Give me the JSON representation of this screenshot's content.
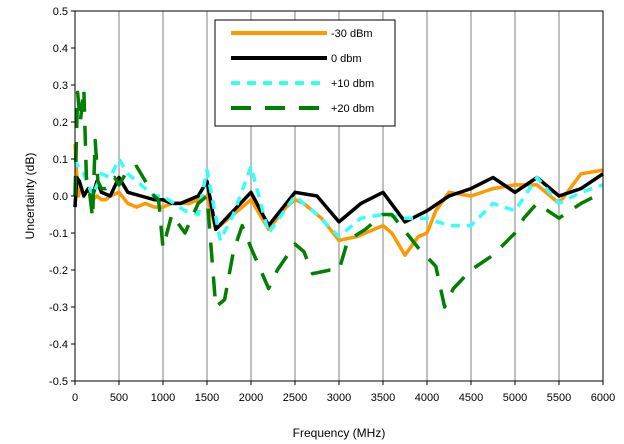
{
  "chart_data": {
    "type": "line",
    "xlabel": "Frequency (MHz)",
    "ylabel": "Uncertainty (dB)",
    "xlim": [
      0,
      6000
    ],
    "ylim": [
      -0.5,
      0.5
    ],
    "xticks": [
      0,
      500,
      1000,
      1500,
      2000,
      2500,
      3000,
      3500,
      4000,
      4500,
      5000,
      5500,
      6000
    ],
    "yticks": [
      -0.5,
      -0.4,
      -0.3,
      -0.2,
      -0.1,
      0.0,
      0.1,
      0.2,
      0.3,
      0.4,
      0.5
    ],
    "ytick_labels": [
      "-0.5",
      "-0.4",
      "-0.3",
      "-0.2",
      "-0.1",
      "0.0",
      "0.1",
      "0.2",
      "0.3",
      "0.4",
      "0.5"
    ],
    "grid": {
      "vertical": true,
      "horizontal": false
    },
    "legend_position": "top-center",
    "series": [
      {
        "name": "-30 dBm",
        "color": "#FF9900",
        "dash": "solid",
        "x": [
          0,
          20,
          40,
          60,
          100,
          150,
          200,
          250,
          300,
          350,
          400,
          500,
          600,
          700,
          800,
          900,
          1000,
          1100,
          1200,
          1300,
          1400,
          1500,
          1600,
          1700,
          1800,
          2000,
          2200,
          2400,
          2500,
          2600,
          2700,
          2800,
          3000,
          3200,
          3400,
          3500,
          3600,
          3750,
          3900,
          4000,
          4100,
          4250,
          4500,
          4750,
          5000,
          5250,
          5500,
          5750,
          6000
        ],
        "y": [
          0.14,
          0.06,
          0.0,
          0.03,
          0.0,
          0.02,
          -0.01,
          0.0,
          -0.01,
          -0.01,
          0.0,
          0.01,
          -0.02,
          -0.03,
          -0.02,
          -0.03,
          -0.03,
          -0.02,
          -0.02,
          -0.02,
          -0.01,
          0.0,
          -0.09,
          -0.07,
          -0.05,
          -0.01,
          -0.09,
          -0.03,
          -0.01,
          -0.02,
          -0.04,
          -0.06,
          -0.12,
          -0.11,
          -0.09,
          -0.08,
          -0.1,
          -0.16,
          -0.11,
          -0.1,
          -0.04,
          0.01,
          0.0,
          0.02,
          0.03,
          0.03,
          -0.02,
          0.06,
          0.07
        ]
      },
      {
        "name": "0 dbm",
        "color": "#000000",
        "dash": "solid",
        "x": [
          0,
          20,
          50,
          100,
          150,
          200,
          250,
          300,
          400,
          500,
          600,
          750,
          900,
          1000,
          1100,
          1200,
          1300,
          1400,
          1500,
          1600,
          1800,
          2000,
          2200,
          2500,
          2750,
          3000,
          3250,
          3500,
          3750,
          4000,
          4250,
          4500,
          4750,
          5000,
          5250,
          5500,
          5750,
          6000
        ],
        "y": [
          -0.03,
          0.05,
          0.04,
          0.0,
          0.02,
          0.0,
          0.04,
          0.01,
          0.0,
          0.05,
          0.01,
          0.0,
          -0.01,
          -0.01,
          -0.02,
          -0.02,
          -0.01,
          0.0,
          0.04,
          -0.09,
          -0.04,
          0.01,
          -0.08,
          0.01,
          0.0,
          -0.07,
          -0.02,
          0.01,
          -0.07,
          -0.04,
          0.0,
          0.02,
          0.05,
          0.01,
          0.05,
          0.0,
          0.02,
          0.06
        ]
      },
      {
        "name": "+10 dbm",
        "color": "#33FFFF",
        "dash": "dotted",
        "x": [
          0,
          50,
          100,
          150,
          200,
          250,
          300,
          400,
          500,
          600,
          750,
          900,
          1000,
          1250,
          1400,
          1500,
          1650,
          1800,
          2000,
          2200,
          2500,
          2750,
          3000,
          3250,
          3500,
          3750,
          4000,
          4250,
          4500,
          4750,
          5000,
          5250,
          5500,
          5750,
          6000
        ],
        "y": [
          0.1,
          0.07,
          0.06,
          0.03,
          0.0,
          0.03,
          0.06,
          0.05,
          0.1,
          0.06,
          0.03,
          0.0,
          0.0,
          -0.04,
          -0.05,
          0.07,
          -0.12,
          -0.05,
          0.08,
          -0.1,
          0.0,
          -0.05,
          -0.11,
          -0.06,
          -0.05,
          -0.06,
          -0.06,
          -0.08,
          -0.08,
          -0.02,
          -0.04,
          0.05,
          -0.02,
          0.01,
          0.03
        ]
      },
      {
        "name": "+20 dbm",
        "color": "#008000",
        "dash": "dashed",
        "x": [
          0,
          30,
          60,
          100,
          130,
          170,
          200,
          230,
          260,
          300,
          350,
          400,
          450,
          500,
          600,
          700,
          800,
          900,
          950,
          1000,
          1100,
          1250,
          1400,
          1500,
          1600,
          1700,
          1800,
          1900,
          2000,
          2200,
          2300,
          2500,
          2600,
          2700,
          2900,
          3000,
          3100,
          3300,
          3500,
          3600,
          3700,
          3900,
          4100,
          4200,
          4300,
          4500,
          4750,
          5000,
          5100,
          5250,
          5500,
          5750,
          6000
        ],
        "y": [
          0.0,
          0.28,
          0.2,
          0.29,
          0.05,
          0.0,
          -0.06,
          0.15,
          0.04,
          0.02,
          0.02,
          0.04,
          0.05,
          0.03,
          0.07,
          0.08,
          0.04,
          0.0,
          -0.01,
          -0.14,
          -0.05,
          -0.1,
          -0.02,
          0.0,
          -0.3,
          -0.28,
          -0.15,
          -0.08,
          -0.14,
          -0.25,
          -0.2,
          -0.13,
          -0.15,
          -0.21,
          -0.2,
          -0.2,
          -0.12,
          -0.09,
          -0.05,
          -0.05,
          -0.08,
          -0.14,
          -0.19,
          -0.3,
          -0.25,
          -0.2,
          -0.16,
          -0.1,
          -0.06,
          -0.02,
          -0.06,
          -0.02,
          0.01
        ]
      }
    ]
  }
}
